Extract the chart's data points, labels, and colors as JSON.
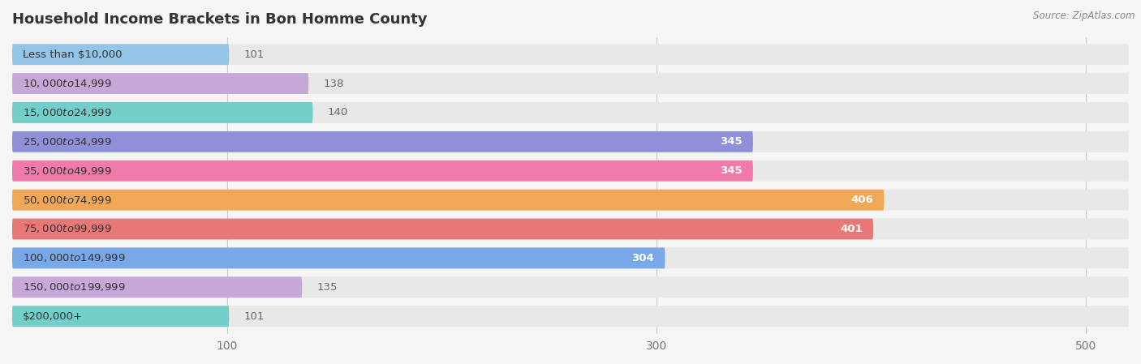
{
  "title": "Household Income Brackets in Bon Homme County",
  "source": "Source: ZipAtlas.com",
  "categories": [
    "Less than $10,000",
    "$10,000 to $14,999",
    "$15,000 to $24,999",
    "$25,000 to $34,999",
    "$35,000 to $49,999",
    "$50,000 to $74,999",
    "$75,000 to $99,999",
    "$100,000 to $149,999",
    "$150,000 to $199,999",
    "$200,000+"
  ],
  "values": [
    101,
    138,
    140,
    345,
    345,
    406,
    401,
    304,
    135,
    101
  ],
  "bar_colors": [
    "#92C5E8",
    "#C5A8D5",
    "#72CEC9",
    "#9090D8",
    "#F07AAA",
    "#F0A858",
    "#E87878",
    "#78A8E8",
    "#C8A8D8",
    "#72CEC9"
  ],
  "background_color": "#f5f5f5",
  "bar_bg_color": "#e8e8e8",
  "xlim": [
    0,
    520
  ],
  "xticks": [
    100,
    300,
    500
  ],
  "title_fontsize": 13,
  "label_fontsize": 9.5,
  "value_fontsize": 9.5
}
